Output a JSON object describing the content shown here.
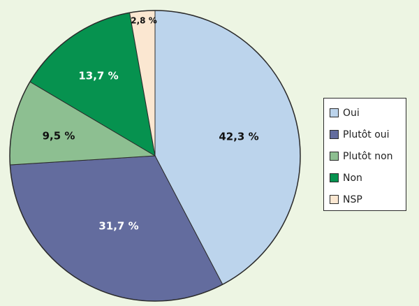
{
  "chart_data": {
    "type": "pie",
    "title": "",
    "start_angle_deg": 0,
    "direction": "clockwise",
    "legend_position": "right",
    "slices": [
      {
        "name": "Oui",
        "value": 42.3,
        "label": "42,3 %",
        "color": "#bcd4ec",
        "label_color": "#111111"
      },
      {
        "name": "Plutôt oui",
        "value": 31.7,
        "label": "31,7 %",
        "color": "#636c9e",
        "label_color": "#ffffff"
      },
      {
        "name": "Plutôt non",
        "value": 9.5,
        "label": "9,5 %",
        "color": "#8dbf91",
        "label_color": "#111111"
      },
      {
        "name": "Non",
        "value": 13.7,
        "label": "13,7 %",
        "color": "#06924f",
        "label_color": "#ffffff"
      },
      {
        "name": "NSP",
        "value": 2.8,
        "label": "2,8 %",
        "color": "#fbe7d1",
        "label_color": "#111111"
      }
    ]
  },
  "legend": {
    "items": [
      {
        "label": "Oui",
        "color": "#bcd4ec"
      },
      {
        "label": "Plutôt oui",
        "color": "#636c9e"
      },
      {
        "label": "Plutôt non",
        "color": "#8dbf91"
      },
      {
        "label": "Non",
        "color": "#06924f"
      },
      {
        "label": "NSP",
        "color": "#fbe7d1"
      }
    ]
  },
  "colors": {
    "background": "#edf5e3",
    "outline": "#2b2b2b"
  }
}
